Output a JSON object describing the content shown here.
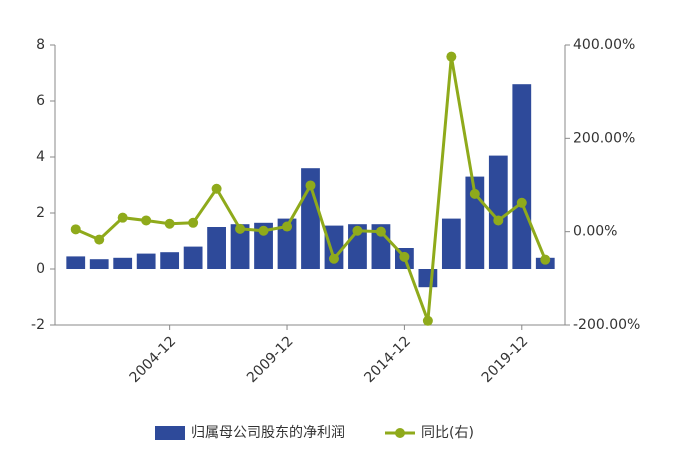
{
  "chart_data": {
    "type": "bar",
    "categories": [
      null,
      null,
      null,
      null,
      "2004-12",
      null,
      null,
      null,
      null,
      "2009-12",
      null,
      null,
      null,
      null,
      "2014-12",
      null,
      null,
      null,
      null,
      "2019-12",
      null
    ],
    "series": [
      {
        "name": "归属母公司股东的净利润",
        "type": "bar",
        "color": "#2e4a9a",
        "values": [
          0.45,
          0.35,
          0.4,
          0.55,
          0.6,
          0.8,
          1.5,
          1.6,
          1.65,
          1.8,
          3.6,
          1.55,
          1.6,
          1.6,
          0.75,
          -0.65,
          1.8,
          3.3,
          4.05,
          6.6,
          0.4
        ]
      },
      {
        "name": "同比(右)",
        "type": "line",
        "axis": "y2",
        "color": "#8faa1b",
        "values": [
          5,
          -17,
          30,
          24,
          17,
          19,
          92,
          6,
          2,
          11,
          99,
          -58,
          2,
          0,
          -54,
          -191,
          375,
          81,
          24,
          62,
          -60
        ]
      }
    ],
    "ylim": [
      -2,
      8
    ],
    "yticks": [
      -2,
      0,
      2,
      4,
      6,
      8
    ],
    "y2lim": [
      -200,
      400
    ],
    "y2ticks": [
      {
        "value": -200,
        "label": "-200.00%"
      },
      {
        "value": 0,
        "label": "0.00%"
      },
      {
        "value": 200,
        "label": "200.00%"
      },
      {
        "value": 400,
        "label": "400.00%"
      }
    ],
    "legend": "bottom"
  }
}
